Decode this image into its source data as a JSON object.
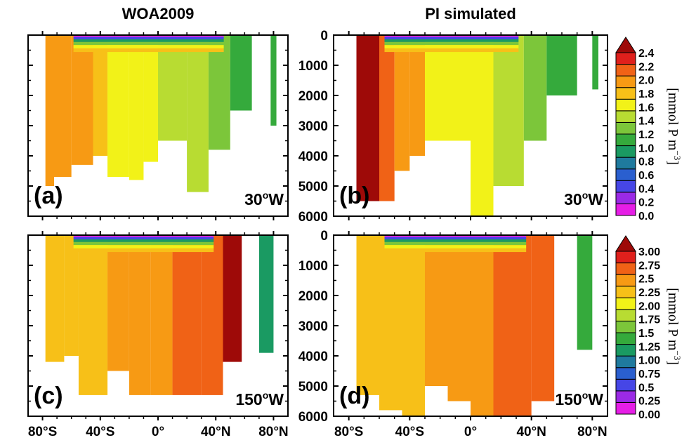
{
  "figure": {
    "column_titles": [
      "WOA2009",
      "PI simulated"
    ]
  },
  "colorbars": [
    {
      "label": "[mmol P m",
      "label_exp": "−3",
      "label_close": "]",
      "ticks": [
        "0.0",
        "0.2",
        "0.4",
        "0.6",
        "0.8",
        "1.0",
        "1.2",
        "1.4",
        "1.6",
        "1.8",
        "2.0",
        "2.2",
        "2.4"
      ],
      "colors": [
        "#e61ee6",
        "#9b2ae6",
        "#4646e6",
        "#2a5fcf",
        "#1f7a9e",
        "#1a9a62",
        "#35aa3c",
        "#7cc63a",
        "#b8dc32",
        "#f2f218",
        "#f7c018",
        "#f79a14",
        "#f06216",
        "#e0201c",
        "#9e0a08"
      ]
    },
    {
      "label": "[mmol P m",
      "label_exp": "−3",
      "label_close": "]",
      "ticks": [
        "0.00",
        "0.25",
        "0.5",
        "0.75",
        "1.00",
        "1.25",
        "1.5",
        "1.75",
        "2.00",
        "2.25",
        "2.5",
        "2.75",
        "3.00"
      ],
      "colors": [
        "#e61ee6",
        "#9b2ae6",
        "#4646e6",
        "#2a5fcf",
        "#1f7a9e",
        "#1a9a62",
        "#35aa3c",
        "#7cc63a",
        "#b8dc32",
        "#f2f218",
        "#f7c018",
        "#f79a14",
        "#f06216",
        "#e0201c",
        "#9e0a08"
      ]
    }
  ],
  "depth_ticks": [
    "0",
    "1000",
    "2000",
    "3000",
    "4000",
    "5000",
    "6000"
  ],
  "lat_ticks": [
    "80°S",
    "40°S",
    "0°",
    "40°N",
    "80°N"
  ],
  "chart_data": [
    {
      "type": "heatmap",
      "panel_label": "(a)",
      "section": "30",
      "section_suffix": "W",
      "title": "WOA2009",
      "variable": "phosphate",
      "xlabel": "",
      "ylabel": "",
      "x_range": [
        -90,
        90
      ],
      "y_range": [
        0,
        6000
      ],
      "y_inverted": true,
      "zones": [
        {
          "lat": [
            -78,
            -72
          ],
          "bottom": 5000,
          "value": 2.1
        },
        {
          "lat": [
            -72,
            -60
          ],
          "bottom": 4700,
          "value": 2.15
        },
        {
          "lat": [
            -60,
            -45
          ],
          "bottom": 4300,
          "value": 2.1
        },
        {
          "lat": [
            -45,
            -35
          ],
          "bottom": 4000,
          "value": 1.95
        },
        {
          "lat": [
            -35,
            -20
          ],
          "bottom": 4700,
          "value": 1.75
        },
        {
          "lat": [
            -20,
            -10
          ],
          "bottom": 4800,
          "value": 1.65
        },
        {
          "lat": [
            -10,
            0
          ],
          "bottom": 4200,
          "value": 1.6
        },
        {
          "lat": [
            0,
            20
          ],
          "bottom": 3500,
          "value": 1.55
        },
        {
          "lat": [
            20,
            35
          ],
          "bottom": 5200,
          "value": 1.5
        },
        {
          "lat": [
            35,
            50
          ],
          "bottom": 3800,
          "value": 1.3
        },
        {
          "lat": [
            50,
            65
          ],
          "bottom": 2500,
          "value": 1.05
        },
        {
          "lat": [
            78,
            82
          ],
          "bottom": 3000,
          "value": 1.0
        }
      ]
    },
    {
      "type": "heatmap",
      "panel_label": "(b)",
      "section": "30",
      "section_suffix": "W",
      "title": "PI simulated",
      "variable": "phosphate",
      "xlabel": "",
      "ylabel": "",
      "x_range": [
        -90,
        90
      ],
      "y_range": [
        0,
        6000
      ],
      "y_inverted": true,
      "zones": [
        {
          "lat": [
            -75,
            -60
          ],
          "bottom": 5500,
          "value": 2.45
        },
        {
          "lat": [
            -60,
            -50
          ],
          "bottom": 5500,
          "value": 2.3
        },
        {
          "lat": [
            -50,
            -40
          ],
          "bottom": 4500,
          "value": 2.15
        },
        {
          "lat": [
            -40,
            -30
          ],
          "bottom": 4000,
          "value": 2.0
        },
        {
          "lat": [
            -30,
            -15
          ],
          "bottom": 3500,
          "value": 1.75
        },
        {
          "lat": [
            -15,
            0
          ],
          "bottom": 3500,
          "value": 1.65
        },
        {
          "lat": [
            0,
            15
          ],
          "bottom": 6000,
          "value": 1.6
        },
        {
          "lat": [
            15,
            35
          ],
          "bottom": 5000,
          "value": 1.55
        },
        {
          "lat": [
            35,
            50
          ],
          "bottom": 3500,
          "value": 1.3
        },
        {
          "lat": [
            50,
            70
          ],
          "bottom": 2000,
          "value": 1.1
        },
        {
          "lat": [
            80,
            84
          ],
          "bottom": 1800,
          "value": 1.0
        }
      ]
    },
    {
      "type": "heatmap",
      "panel_label": "(c)",
      "section": "150",
      "section_suffix": "W",
      "title": "WOA2009",
      "variable": "phosphate",
      "xlabel": "",
      "ylabel": "",
      "x_range": [
        -90,
        90
      ],
      "y_range": [
        0,
        6000
      ],
      "y_inverted": true,
      "zones": [
        {
          "lat": [
            -78,
            -65
          ],
          "bottom": 4200,
          "value": 2.3
        },
        {
          "lat": [
            -65,
            -55
          ],
          "bottom": 4000,
          "value": 2.25
        },
        {
          "lat": [
            -55,
            -45
          ],
          "bottom": 5300,
          "value": 2.35
        },
        {
          "lat": [
            -45,
            -35
          ],
          "bottom": 5300,
          "value": 2.4
        },
        {
          "lat": [
            -35,
            -20
          ],
          "bottom": 4500,
          "value": 2.55
        },
        {
          "lat": [
            -20,
            -5
          ],
          "bottom": 5300,
          "value": 2.65
        },
        {
          "lat": [
            -5,
            10
          ],
          "bottom": 5300,
          "value": 2.7
        },
        {
          "lat": [
            10,
            30
          ],
          "bottom": 5300,
          "value": 2.8
        },
        {
          "lat": [
            30,
            45
          ],
          "bottom": 5300,
          "value": 2.95
        },
        {
          "lat": [
            45,
            58
          ],
          "bottom": 4200,
          "value": 3.0
        },
        {
          "lat": [
            70,
            80
          ],
          "bottom": 3900,
          "value": 1.1
        }
      ]
    },
    {
      "type": "heatmap",
      "panel_label": "(d)",
      "section": "150",
      "section_suffix": "W",
      "title": "PI simulated",
      "variable": "phosphate",
      "xlabel": "",
      "ylabel": "",
      "x_range": [
        -90,
        90
      ],
      "y_range": [
        0,
        6000
      ],
      "y_inverted": true,
      "zones": [
        {
          "lat": [
            -75,
            -60
          ],
          "bottom": 5300,
          "value": 2.3
        },
        {
          "lat": [
            -60,
            -45
          ],
          "bottom": 5800,
          "value": 2.35
        },
        {
          "lat": [
            -45,
            -30
          ],
          "bottom": 6000,
          "value": 2.4
        },
        {
          "lat": [
            -30,
            -15
          ],
          "bottom": 5000,
          "value": 2.5
        },
        {
          "lat": [
            -15,
            0
          ],
          "bottom": 5500,
          "value": 2.55
        },
        {
          "lat": [
            0,
            15
          ],
          "bottom": 6000,
          "value": 2.6
        },
        {
          "lat": [
            15,
            40
          ],
          "bottom": 6000,
          "value": 2.8
        },
        {
          "lat": [
            40,
            55
          ],
          "bottom": 5500,
          "value": 2.85
        },
        {
          "lat": [
            70,
            80
          ],
          "bottom": 3800,
          "value": 1.25
        }
      ]
    }
  ]
}
